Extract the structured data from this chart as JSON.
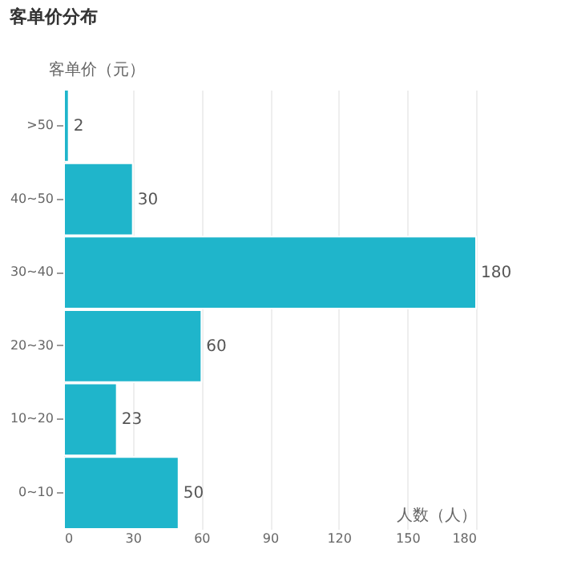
{
  "chart_data": {
    "type": "bar",
    "orientation": "horizontal",
    "title": "客单价分布",
    "xlabel": "人数（人）",
    "ylabel": "客单价（元）",
    "categories": [
      ">50",
      "40~50",
      "30~40",
      "20~30",
      "10~20",
      "0~10"
    ],
    "values": [
      2,
      30,
      180,
      60,
      23,
      50
    ],
    "color": "#1fb5cb",
    "xlim": [
      0,
      180
    ],
    "xticks": [
      0,
      30,
      60,
      90,
      120,
      150,
      180
    ],
    "grid": "x",
    "data_labels": true
  }
}
